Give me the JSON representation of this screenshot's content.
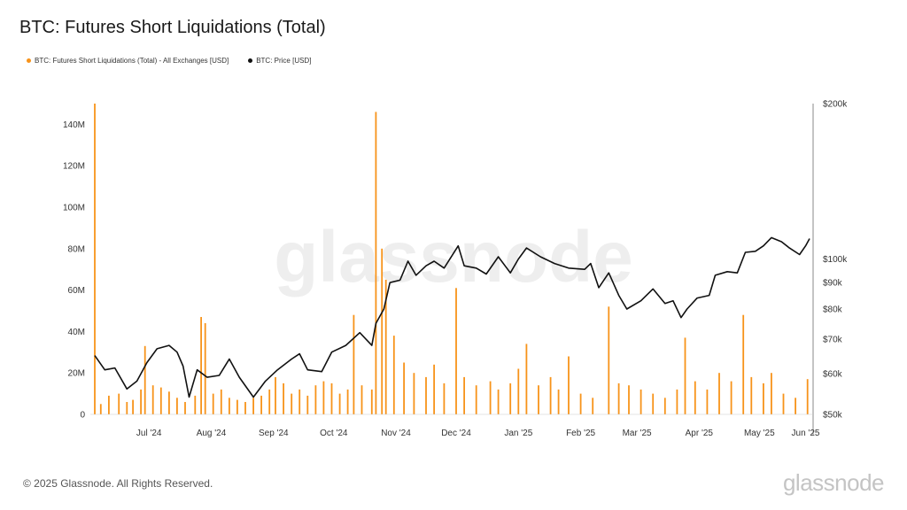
{
  "title": "BTC: Futures Short Liquidations (Total)",
  "legend": [
    {
      "label": "BTC: Futures Short Liquidations (Total) - All Exchanges [USD]",
      "color": "#f7931a"
    },
    {
      "label": "BTC: Price [USD]",
      "color": "#111111"
    }
  ],
  "watermark": "glassnode",
  "footer": "© 2025 Glassnode. All Rights Reserved.",
  "brand": "glassnode",
  "chart_data": {
    "type": "bar",
    "title": "BTC: Futures Short Liquidations (Total)",
    "x_range": [
      "2024-06-19",
      "2025-06-10"
    ],
    "x_ticks": [
      "Jul '24",
      "Aug '24",
      "Sep '24",
      "Oct '24",
      "Nov '24",
      "Dec '24",
      "Jan '25",
      "Feb '25",
      "Mar '25",
      "Apr '25",
      "May '25",
      "Jun '25"
    ],
    "y_left_ticks": [
      "0",
      "20M",
      "40M",
      "60M",
      "80M",
      "100M",
      "120M",
      "140M"
    ],
    "y_left_range": [
      0,
      150000000
    ],
    "y_right_ticks": [
      "$50k",
      "$60k",
      "$70k",
      "$80k",
      "$90k",
      "$100k",
      "$200k"
    ],
    "y_right_range": [
      50000,
      200000
    ],
    "y_right_scale": "log",
    "grid": false,
    "series": [
      {
        "name": "BTC: Futures Short Liquidations (Total) - All Exchanges [USD]",
        "type": "bar",
        "color": "#f7931a",
        "points": [
          [
            "2024-06-19",
            150000000
          ],
          [
            "2024-06-22",
            5000000
          ],
          [
            "2024-06-26",
            9000000
          ],
          [
            "2024-07-01",
            10000000
          ],
          [
            "2024-07-05",
            6000000
          ],
          [
            "2024-07-08",
            7000000
          ],
          [
            "2024-07-12",
            12000000
          ],
          [
            "2024-07-14",
            33000000
          ],
          [
            "2024-07-18",
            14000000
          ],
          [
            "2024-07-22",
            13000000
          ],
          [
            "2024-07-26",
            11000000
          ],
          [
            "2024-07-30",
            8000000
          ],
          [
            "2024-08-03",
            6000000
          ],
          [
            "2024-08-08",
            9000000
          ],
          [
            "2024-08-11",
            47000000
          ],
          [
            "2024-08-13",
            44000000
          ],
          [
            "2024-08-17",
            10000000
          ],
          [
            "2024-08-21",
            12000000
          ],
          [
            "2024-08-25",
            8000000
          ],
          [
            "2024-08-29",
            7000000
          ],
          [
            "2024-09-02",
            6000000
          ],
          [
            "2024-09-06",
            8000000
          ],
          [
            "2024-09-10",
            9000000
          ],
          [
            "2024-09-14",
            12000000
          ],
          [
            "2024-09-17",
            18000000
          ],
          [
            "2024-09-21",
            15000000
          ],
          [
            "2024-09-25",
            10000000
          ],
          [
            "2024-09-29",
            12000000
          ],
          [
            "2024-10-03",
            9000000
          ],
          [
            "2024-10-07",
            14000000
          ],
          [
            "2024-10-11",
            16000000
          ],
          [
            "2024-10-15",
            15000000
          ],
          [
            "2024-10-19",
            10000000
          ],
          [
            "2024-10-23",
            12000000
          ],
          [
            "2024-10-26",
            48000000
          ],
          [
            "2024-10-30",
            14000000
          ],
          [
            "2024-11-04",
            12000000
          ],
          [
            "2024-11-06",
            146000000
          ],
          [
            "2024-11-09",
            80000000
          ],
          [
            "2024-11-11",
            65000000
          ],
          [
            "2024-11-15",
            38000000
          ],
          [
            "2024-11-20",
            25000000
          ],
          [
            "2024-11-25",
            20000000
          ],
          [
            "2024-12-01",
            18000000
          ],
          [
            "2024-12-05",
            24000000
          ],
          [
            "2024-12-10",
            15000000
          ],
          [
            "2024-12-16",
            61000000
          ],
          [
            "2024-12-20",
            18000000
          ],
          [
            "2024-12-26",
            14000000
          ],
          [
            "2025-01-02",
            16000000
          ],
          [
            "2025-01-06",
            12000000
          ],
          [
            "2025-01-12",
            15000000
          ],
          [
            "2025-01-16",
            22000000
          ],
          [
            "2025-01-20",
            34000000
          ],
          [
            "2025-01-26",
            14000000
          ],
          [
            "2025-02-01",
            18000000
          ],
          [
            "2025-02-05",
            12000000
          ],
          [
            "2025-02-10",
            28000000
          ],
          [
            "2025-02-16",
            10000000
          ],
          [
            "2025-02-22",
            8000000
          ],
          [
            "2025-03-02",
            52000000
          ],
          [
            "2025-03-07",
            15000000
          ],
          [
            "2025-03-12",
            14000000
          ],
          [
            "2025-03-18",
            12000000
          ],
          [
            "2025-03-24",
            10000000
          ],
          [
            "2025-03-30",
            8000000
          ],
          [
            "2025-04-05",
            12000000
          ],
          [
            "2025-04-09",
            37000000
          ],
          [
            "2025-04-14",
            16000000
          ],
          [
            "2025-04-20",
            12000000
          ],
          [
            "2025-04-26",
            20000000
          ],
          [
            "2025-05-02",
            16000000
          ],
          [
            "2025-05-08",
            48000000
          ],
          [
            "2025-05-12",
            18000000
          ],
          [
            "2025-05-18",
            15000000
          ],
          [
            "2025-05-22",
            20000000
          ],
          [
            "2025-05-28",
            10000000
          ],
          [
            "2025-06-03",
            8000000
          ],
          [
            "2025-06-09",
            17000000
          ]
        ]
      },
      {
        "name": "BTC: Price [USD]",
        "type": "line",
        "color": "#111111",
        "points": [
          [
            "2024-06-19",
            65000
          ],
          [
            "2024-06-24",
            61000
          ],
          [
            "2024-06-29",
            61500
          ],
          [
            "2024-07-05",
            56000
          ],
          [
            "2024-07-10",
            58000
          ],
          [
            "2024-07-15",
            63000
          ],
          [
            "2024-07-20",
            67000
          ],
          [
            "2024-07-26",
            68000
          ],
          [
            "2024-07-30",
            66000
          ],
          [
            "2024-08-02",
            62000
          ],
          [
            "2024-08-05",
            54000
          ],
          [
            "2024-08-09",
            61000
          ],
          [
            "2024-08-14",
            59000
          ],
          [
            "2024-08-20",
            59500
          ],
          [
            "2024-08-25",
            64000
          ],
          [
            "2024-08-30",
            59000
          ],
          [
            "2024-09-06",
            54000
          ],
          [
            "2024-09-12",
            58000
          ],
          [
            "2024-09-18",
            61000
          ],
          [
            "2024-09-25",
            64000
          ],
          [
            "2024-09-29",
            65500
          ],
          [
            "2024-10-03",
            61000
          ],
          [
            "2024-10-10",
            60500
          ],
          [
            "2024-10-15",
            66000
          ],
          [
            "2024-10-22",
            68000
          ],
          [
            "2024-10-29",
            72000
          ],
          [
            "2024-11-04",
            68000
          ],
          [
            "2024-11-06",
            75000
          ],
          [
            "2024-11-10",
            80000
          ],
          [
            "2024-11-13",
            90000
          ],
          [
            "2024-11-18",
            91000
          ],
          [
            "2024-11-22",
            99000
          ],
          [
            "2024-11-26",
            93000
          ],
          [
            "2024-12-01",
            97000
          ],
          [
            "2024-12-05",
            99000
          ],
          [
            "2024-12-10",
            96000
          ],
          [
            "2024-12-17",
            106000
          ],
          [
            "2024-12-20",
            97000
          ],
          [
            "2024-12-26",
            96000
          ],
          [
            "2024-12-31",
            93500
          ],
          [
            "2025-01-06",
            101000
          ],
          [
            "2025-01-12",
            94000
          ],
          [
            "2025-01-16",
            100000
          ],
          [
            "2025-01-20",
            105000
          ],
          [
            "2025-01-27",
            101000
          ],
          [
            "2025-02-03",
            98000
          ],
          [
            "2025-02-10",
            96000
          ],
          [
            "2025-02-18",
            95500
          ],
          [
            "2025-02-21",
            98000
          ],
          [
            "2025-02-25",
            88000
          ],
          [
            "2025-03-02",
            94000
          ],
          [
            "2025-03-07",
            85000
          ],
          [
            "2025-03-11",
            80000
          ],
          [
            "2025-03-18",
            83000
          ],
          [
            "2025-03-24",
            87500
          ],
          [
            "2025-03-30",
            82000
          ],
          [
            "2025-04-03",
            83000
          ],
          [
            "2025-04-07",
            77000
          ],
          [
            "2025-04-10",
            80000
          ],
          [
            "2025-04-15",
            84000
          ],
          [
            "2025-04-21",
            85000
          ],
          [
            "2025-04-24",
            93000
          ],
          [
            "2025-04-30",
            94500
          ],
          [
            "2025-05-05",
            94000
          ],
          [
            "2025-05-09",
            103000
          ],
          [
            "2025-05-14",
            103500
          ],
          [
            "2025-05-18",
            106000
          ],
          [
            "2025-05-22",
            110000
          ],
          [
            "2025-05-27",
            108000
          ],
          [
            "2025-05-31",
            105000
          ],
          [
            "2025-06-05",
            102000
          ],
          [
            "2025-06-08",
            106000
          ],
          [
            "2025-06-10",
            109500
          ]
        ]
      }
    ]
  }
}
